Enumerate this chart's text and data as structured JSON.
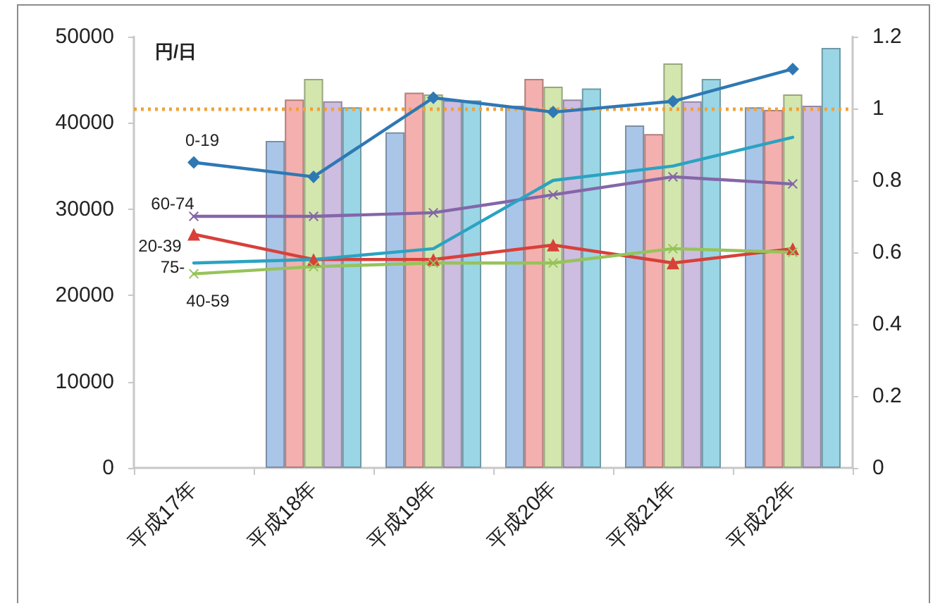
{
  "chart_data": {
    "type": "bar",
    "ylabel": "円/日",
    "categories": [
      "平成17年",
      "平成18年",
      "平成19年",
      "平成20年",
      "平成21年",
      "平成22年"
    ],
    "ylim": [
      0,
      50000
    ],
    "yticks": [
      0,
      10000,
      20000,
      30000,
      40000,
      50000
    ],
    "y2lim": [
      0,
      1.2
    ],
    "y2ticks": [
      0,
      0.2,
      0.4,
      0.6,
      0.8,
      1,
      1.2
    ],
    "series": [
      {
        "color": "#a9c6e8",
        "values": [
          null,
          37900,
          38900,
          42000,
          39700,
          41800
        ]
      },
      {
        "color": "#f4b0ae",
        "values": [
          null,
          42700,
          43500,
          45100,
          38700,
          41500
        ]
      },
      {
        "color": "#d3e6ad",
        "values": [
          null,
          45100,
          43300,
          44200,
          46900,
          43300
        ]
      },
      {
        "color": "#cdbde0",
        "values": [
          null,
          42500,
          42600,
          42700,
          42500,
          42000
        ]
      },
      {
        "color": "#9ad6e6",
        "values": [
          null,
          41800,
          42600,
          44000,
          45100,
          48700
        ]
      },
      {
        "type": "line",
        "axis": "y2",
        "name": "0-19",
        "color": "#2f78b4",
        "marker": "diamond",
        "values": [
          0.85,
          0.81,
          1.03,
          0.99,
          1.02,
          1.11
        ]
      },
      {
        "type": "line",
        "axis": "y2",
        "name": "20-39",
        "color": "#d8403a",
        "marker": "triangle",
        "values": [
          0.65,
          0.58,
          0.58,
          0.62,
          0.57,
          0.61
        ]
      },
      {
        "type": "line",
        "axis": "y2",
        "name": "40-59",
        "color": "#96c35a",
        "marker": "cross",
        "values": [
          0.54,
          0.56,
          0.57,
          0.57,
          0.61,
          0.6
        ]
      },
      {
        "type": "line",
        "axis": "y2",
        "name": "60-74",
        "color": "#8466a8",
        "marker": "cross",
        "values": [
          0.7,
          0.7,
          0.71,
          0.76,
          0.81,
          0.79
        ]
      },
      {
        "type": "line",
        "axis": "y2",
        "name": "75-",
        "color": "#2aa3c2",
        "marker": "none",
        "values": [
          0.57,
          0.58,
          0.61,
          0.8,
          0.84,
          0.92
        ]
      }
    ],
    "ref_lines": [
      {
        "axis": "y2",
        "value": 1,
        "color": "#f0a23c",
        "line_style": "dotted"
      }
    ]
  }
}
